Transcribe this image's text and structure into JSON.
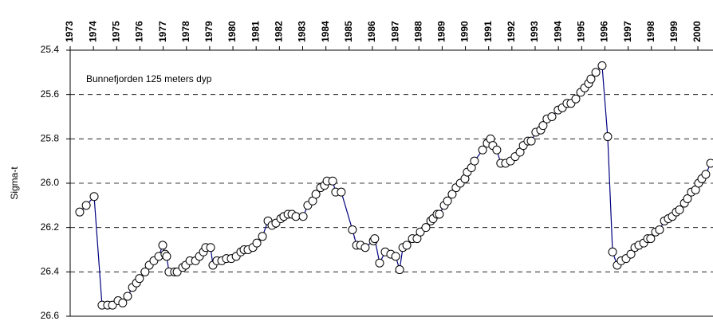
{
  "chart_data": {
    "type": "line",
    "annotation": "Bunnefjorden 125 meters dyp",
    "ylabel": "Sigma-t",
    "xlim": [
      1973,
      2000.65
    ],
    "xticks": [
      1973,
      1974,
      1975,
      1976,
      1977,
      1978,
      1979,
      1980,
      1981,
      1982,
      1983,
      1984,
      1985,
      1986,
      1987,
      1988,
      1989,
      1990,
      1991,
      1992,
      1993,
      1994,
      1995,
      1996,
      1997,
      1998,
      1999,
      2000
    ],
    "ylim": [
      25.4,
      26.6
    ],
    "yticks": [
      25.4,
      25.6,
      25.8,
      {
        "value": 26,
        "label": "26.0"
      },
      26.2,
      26.4,
      26.6
    ],
    "y_inverted": true,
    "grid": true,
    "series": [
      {
        "color": "#000080",
        "x": [
          1973.41,
          1973.69,
          1974.03,
          1974.37,
          1974.61,
          1974.82,
          1975.06,
          1975.26,
          1975.47,
          1975.68,
          1975.85,
          1975.98,
          1976.22,
          1976.4,
          1976.6,
          1976.81,
          1976.98,
          1977.08,
          1977.15,
          1977.25,
          1977.49,
          1977.6,
          1977.84,
          1977.97,
          1978.15,
          1978.39,
          1978.56,
          1978.73,
          1978.83,
          1979.04,
          1979.14,
          1979.31,
          1979.52,
          1979.72,
          1979.93,
          1980.14,
          1980.34,
          1980.48,
          1980.65,
          1980.86,
          1981.03,
          1981.27,
          1981.51,
          1981.68,
          1981.85,
          1982.06,
          1982.19,
          1982.37,
          1982.54,
          1982.71,
          1983.02,
          1983.22,
          1983.43,
          1983.57,
          1983.77,
          1983.94,
          1984.05,
          1984.29,
          1984.42,
          1984.66,
          1985.14,
          1985.32,
          1985.49,
          1985.69,
          1986.04,
          1986.1,
          1986.31,
          1986.55,
          1986.79,
          1987.0,
          1987.17,
          1987.31,
          1987.48,
          1987.72,
          1987.92,
          1988.06,
          1988.3,
          1988.51,
          1988.61,
          1988.78,
          1988.88,
          1989.09,
          1989.23,
          1989.43,
          1989.6,
          1989.78,
          1989.98,
          1990.08,
          1990.26,
          1990.39,
          1990.74,
          1990.94,
          1991.08,
          1991.18,
          1991.35,
          1991.52,
          1991.73,
          1991.94,
          1992.14,
          1992.35,
          1992.49,
          1992.69,
          1992.83,
          1993.03,
          1993.24,
          1993.34,
          1993.51,
          1993.72,
          1993.99,
          1994.17,
          1994.37,
          1994.54,
          1994.75,
          1994.96,
          1995.13,
          1995.3,
          1995.4,
          1995.61,
          1995.88,
          1996.12,
          1996.33,
          1996.53,
          1996.7,
          1996.91,
          1997.12,
          1997.29,
          1997.46,
          1997.67,
          1997.84,
          1997.97,
          1998.18,
          1998.35,
          1998.56,
          1998.73,
          1998.9,
          1999.07,
          1999.21,
          1999.42,
          1999.55,
          1999.72,
          1999.9,
          2000.03,
          2000.17,
          2000.34,
          2000.55
        ],
        "values": [
          26.13,
          26.1,
          26.06,
          26.55,
          26.55,
          26.55,
          26.53,
          26.54,
          26.51,
          26.47,
          26.45,
          26.43,
          26.4,
          26.37,
          26.35,
          26.33,
          26.28,
          26.32,
          26.33,
          26.4,
          26.4,
          26.4,
          26.38,
          26.37,
          26.35,
          26.35,
          26.33,
          26.31,
          26.29,
          26.29,
          26.37,
          26.35,
          26.35,
          26.34,
          26.34,
          26.33,
          26.31,
          26.3,
          26.3,
          26.29,
          26.27,
          26.24,
          26.17,
          26.19,
          26.18,
          26.16,
          26.15,
          26.14,
          26.14,
          26.15,
          26.15,
          26.1,
          26.08,
          26.05,
          26.02,
          26.01,
          25.99,
          25.99,
          26.04,
          26.04,
          26.21,
          26.28,
          26.28,
          26.29,
          26.26,
          26.25,
          26.36,
          26.31,
          26.32,
          26.33,
          26.39,
          26.29,
          26.28,
          26.25,
          26.25,
          26.22,
          26.2,
          26.17,
          26.16,
          26.14,
          26.14,
          26.1,
          26.08,
          26.05,
          26.02,
          26.0,
          25.98,
          25.95,
          25.93,
          25.9,
          25.85,
          25.82,
          25.8,
          25.83,
          25.85,
          25.91,
          25.91,
          25.9,
          25.88,
          25.86,
          25.83,
          25.81,
          25.81,
          25.77,
          25.76,
          25.74,
          25.71,
          25.7,
          25.67,
          25.66,
          25.64,
          25.64,
          25.62,
          25.59,
          25.57,
          25.55,
          25.53,
          25.5,
          25.47,
          25.79,
          26.31,
          26.37,
          26.35,
          26.34,
          26.32,
          26.29,
          26.28,
          26.27,
          26.25,
          26.25,
          26.22,
          26.21,
          26.17,
          26.16,
          26.15,
          26.13,
          26.12,
          26.09,
          26.07,
          26.04,
          26.03,
          26.0,
          25.98,
          25.96,
          25.91
        ]
      }
    ]
  }
}
